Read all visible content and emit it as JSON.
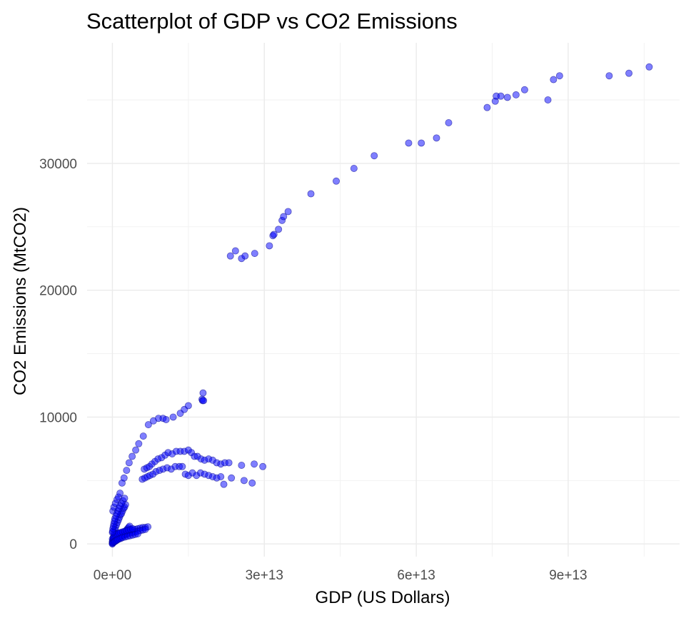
{
  "chart_data": {
    "type": "scatter",
    "title": "Scatterplot of GDP vs CO2 Emissions",
    "xlabel": "GDP (US Dollars)",
    "ylabel": "CO2 Emissions (MtCO2)",
    "xlim": [
      -5000000000000.0,
      112000000000000.0
    ],
    "ylim": [
      -1000,
      39500
    ],
    "x_ticks": [
      0,
      30000000000000.0,
      60000000000000.0,
      90000000000000.0
    ],
    "x_tick_labels": [
      "0e+00",
      "3e+13",
      "6e+13",
      "9e+13"
    ],
    "y_ticks": [
      0,
      10000,
      20000,
      30000
    ],
    "y_tick_labels": [
      "0",
      "10000",
      "20000",
      "30000"
    ],
    "grid": true,
    "point_color": "#0000ff",
    "series": [
      {
        "x": [
          23300000000000.0,
          24300000000000.0,
          25500000000000.0,
          26200000000000.0,
          28100000000000.0,
          31000000000000.0,
          31700000000000.0,
          31900000000000.0,
          32800000000000.0,
          33500000000000.0,
          33800000000000.0,
          34700000000000.0,
          39200000000000.0,
          44200000000000.0,
          47700000000000.0,
          51700000000000.0,
          58500000000000.0,
          61000000000000.0,
          64000000000000.0,
          66400000000000.0,
          74000000000000.0,
          75600000000000.0,
          75800000000000.0,
          76700000000000.0,
          78000000000000.0,
          79700000000000.0,
          81400000000000.0,
          86000000000000.0,
          87100000000000.0,
          88300000000000.0,
          98100000000000.0,
          102000000000000.0,
          106000000000000.0,
          100000000000.0,
          300000000000.0,
          600000000000.0,
          900000000000.0,
          1200000000000.0,
          1500000000000.0,
          1900000000000.0,
          2300000000000.0,
          2800000000000.0,
          3300000000000.0,
          3900000000000.0,
          4600000000000.0,
          5200000000000.0,
          6100000000000.0,
          7100000000000.0,
          8100000000000.0,
          9100000000000.0,
          10000000000000.0,
          10600000000000.0,
          12000000000000.0,
          13400000000000.0,
          14200000000000.0,
          15000000000000.0,
          17700000000000.0,
          17800000000000.0,
          17900000000000.0,
          18000000000000.0,
          6300000000000.0,
          6800000000000.0,
          7300000000000.0,
          7800000000000.0,
          8400000000000.0,
          9000000000000.0,
          9700000000000.0,
          10400000000000.0,
          11000000000000.0,
          11800000000000.0,
          12600000000000.0,
          13400000000000.0,
          14200000000000.0,
          15000000000000.0,
          15600000000000.0,
          16200000000000.0,
          16800000000000.0,
          17500000000000.0,
          18200000000000.0,
          19000000000000.0,
          19800000000000.0,
          20600000000000.0,
          21400000000000.0,
          22200000000000.0,
          23000000000000.0,
          25500000000000.0,
          28000000000000.0,
          29700000000000.0,
          5900000000000.0,
          6400000000000.0,
          6900000000000.0,
          7400000000000.0,
          8000000000000.0,
          8600000000000.0,
          9300000000000.0,
          10000000000000.0,
          10800000000000.0,
          11600000000000.0,
          12400000000000.0,
          13200000000000.0,
          13800000000000.0,
          14400000000000.0,
          15000000000000.0,
          15800000000000.0,
          16600000000000.0,
          17400000000000.0,
          18200000000000.0,
          19000000000000.0,
          19800000000000.0,
          20600000000000.0,
          21400000000000.0,
          22000000000000.0,
          23500000000000.0,
          26000000000000.0,
          27600000000000.0,
          0,
          100000000000.0,
          200000000000.0,
          300000000000.0,
          400000000000.0,
          500000000000.0,
          600000000000.0,
          800000000000.0,
          1000000000000.0,
          1200000000000.0,
          1400000000000.0,
          1600000000000.0,
          1800000000000.0,
          2000000000000.0,
          2200000000000.0,
          2400000000000.0,
          2600000000000.0,
          2800000000000.0,
          3000000000000.0,
          3200000000000.0,
          3400000000000.0,
          0,
          200000000000.0,
          400000000000.0,
          600000000000.0,
          800000000000.0,
          1000000000000.0,
          1300000000000.0,
          1600000000000.0,
          2000000000000.0,
          2500000000000.0,
          3000000000000.0,
          3500000000000.0,
          4000000000000.0,
          4500000000000.0,
          5000000000000.0,
          5500000000000.0,
          6000000000000.0,
          6500000000000.0,
          7000000000000.0,
          0,
          300000000000.0,
          600000000000.0,
          900000000000.0,
          1200000000000.0,
          1500000000000.0,
          1800000000000.0,
          2100000000000.0,
          2400000000000.0,
          2700000000000.0,
          3000000000000.0,
          3500000000000.0,
          4000000000000.0,
          4500000000000.0,
          5000000000000.0,
          5500000000000.0,
          6000000000000.0,
          6500000000000.0,
          0,
          200000000000.0,
          400000000000.0,
          600000000000.0,
          800000000000.0,
          1000000000000.0,
          1300000000000.0,
          1600000000000.0,
          2000000000000.0,
          2400000000000.0,
          2800000000000.0,
          3200000000000.0,
          3600000000000.0,
          4000000000000.0,
          0,
          100000000000.0,
          300000000000.0,
          500000000000.0,
          700000000000.0,
          900000000000.0,
          1100000000000.0,
          1400000000000.0,
          1700000000000.0,
          2000000000000.0,
          2500000000000.0,
          3000000000000.0,
          3500000000000.0,
          4000000000000.0,
          4500000000000.0,
          5000000000000.0,
          0,
          50000000000.0,
          100000000000.0,
          200000000000.0,
          300000000000.0,
          400000000000.0,
          500000000000.0,
          700000000000.0,
          900000000000.0,
          1100000000000.0,
          1300000000000.0,
          1500000000000.0,
          1800000000000.0,
          2100000000000.0,
          2400000000000.0
        ],
        "y": [
          22700,
          23100,
          22500,
          22700,
          22900,
          23500,
          24300,
          24400,
          24800,
          25500,
          25800,
          26200,
          27600,
          28600,
          29600,
          30600,
          31600,
          31600,
          32000,
          33200,
          34400,
          34900,
          35300,
          35300,
          35200,
          35400,
          35800,
          35000,
          36600,
          36900,
          36900,
          37100,
          37600,
          2600,
          2900,
          3200,
          3500,
          3700,
          4000,
          4800,
          5200,
          5800,
          6400,
          6900,
          7400,
          7900,
          8500,
          9400,
          9700,
          9900,
          9900,
          9800,
          10000,
          10300,
          10600,
          10900,
          11400,
          11300,
          11900,
          11300,
          5900,
          6000,
          6100,
          6300,
          6500,
          6700,
          6800,
          7000,
          7200,
          7100,
          7300,
          7300,
          7300,
          7400,
          7200,
          6900,
          6900,
          6700,
          6600,
          6700,
          6600,
          6400,
          6300,
          6400,
          6400,
          6200,
          6300,
          6100,
          5100,
          5200,
          5300,
          5400,
          5500,
          5700,
          5800,
          5900,
          6000,
          5900,
          6100,
          6100,
          6100,
          5500,
          5400,
          5600,
          5400,
          5600,
          5500,
          5400,
          5300,
          5200,
          5300,
          4700,
          5200,
          5000,
          4800,
          100,
          300,
          500,
          700,
          900,
          1100,
          1300,
          1500,
          1700,
          1900,
          2100,
          2300,
          2400,
          2600,
          2800,
          2900,
          3100,
          1100,
          1200,
          1300,
          1400,
          200,
          300,
          400,
          500,
          600,
          700,
          800,
          850,
          900,
          950,
          1000,
          1050,
          1100,
          1150,
          1200,
          1250,
          1300,
          1300,
          1350,
          50,
          150,
          250,
          350,
          450,
          550,
          600,
          650,
          700,
          750,
          800,
          850,
          900,
          950,
          1000,
          1050,
          1100,
          1150,
          400,
          500,
          600,
          700,
          750,
          800,
          850,
          900,
          950,
          1000,
          1050,
          1100,
          1150,
          1200,
          0,
          100,
          150,
          200,
          250,
          300,
          350,
          400,
          450,
          500,
          550,
          600,
          650,
          700,
          750,
          800,
          900,
          1000,
          1200,
          1400,
          1600,
          1800,
          2000,
          2200,
          2400,
          2600,
          2800,
          3000,
          3200,
          3400,
          3600
        ]
      }
    ]
  }
}
